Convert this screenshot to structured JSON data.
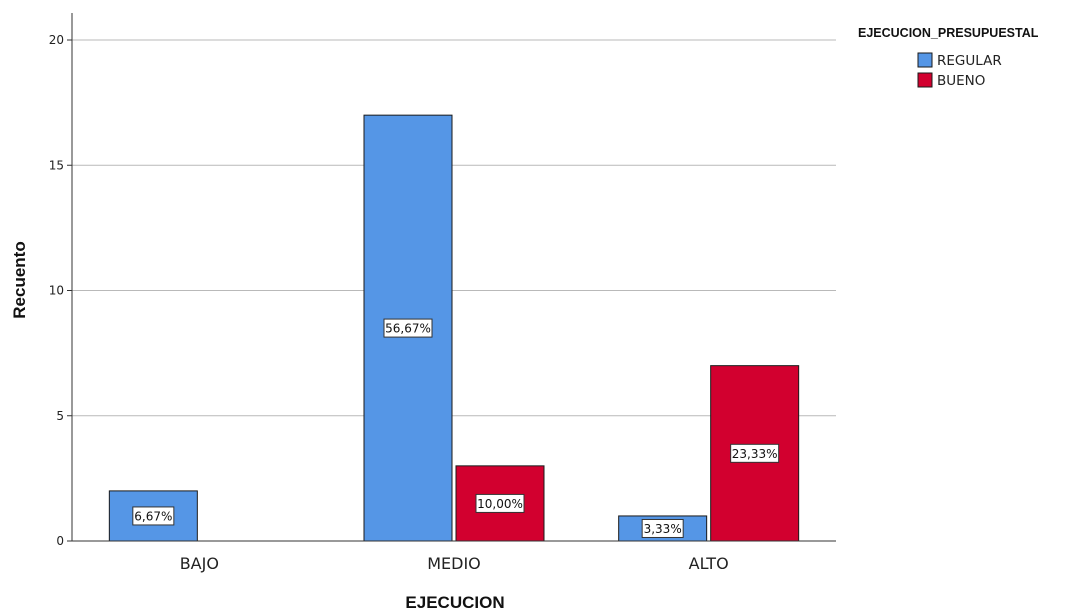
{
  "chart_data": {
    "type": "bar",
    "xlabel": "EJECUCION",
    "ylabel": "Recuento",
    "categories": [
      "BAJO",
      "MEDIO",
      "ALTO"
    ],
    "ylim": [
      0,
      21
    ],
    "yticks": [
      0,
      5,
      10,
      15,
      20
    ],
    "grid": true,
    "legend": {
      "title": "EJECUCION_PRESUPUESTAL",
      "placement": "top-right"
    },
    "series": [
      {
        "name": "REGULAR",
        "color": "#5596E6",
        "values": [
          2,
          17,
          1
        ],
        "labels": [
          "6,67%",
          "56,67%",
          "3,33%"
        ]
      },
      {
        "name": "BUENO",
        "color": "#D2002F",
        "values": [
          0,
          3,
          7
        ],
        "labels": [
          "",
          "10,00%",
          "23,33%"
        ]
      }
    ]
  }
}
